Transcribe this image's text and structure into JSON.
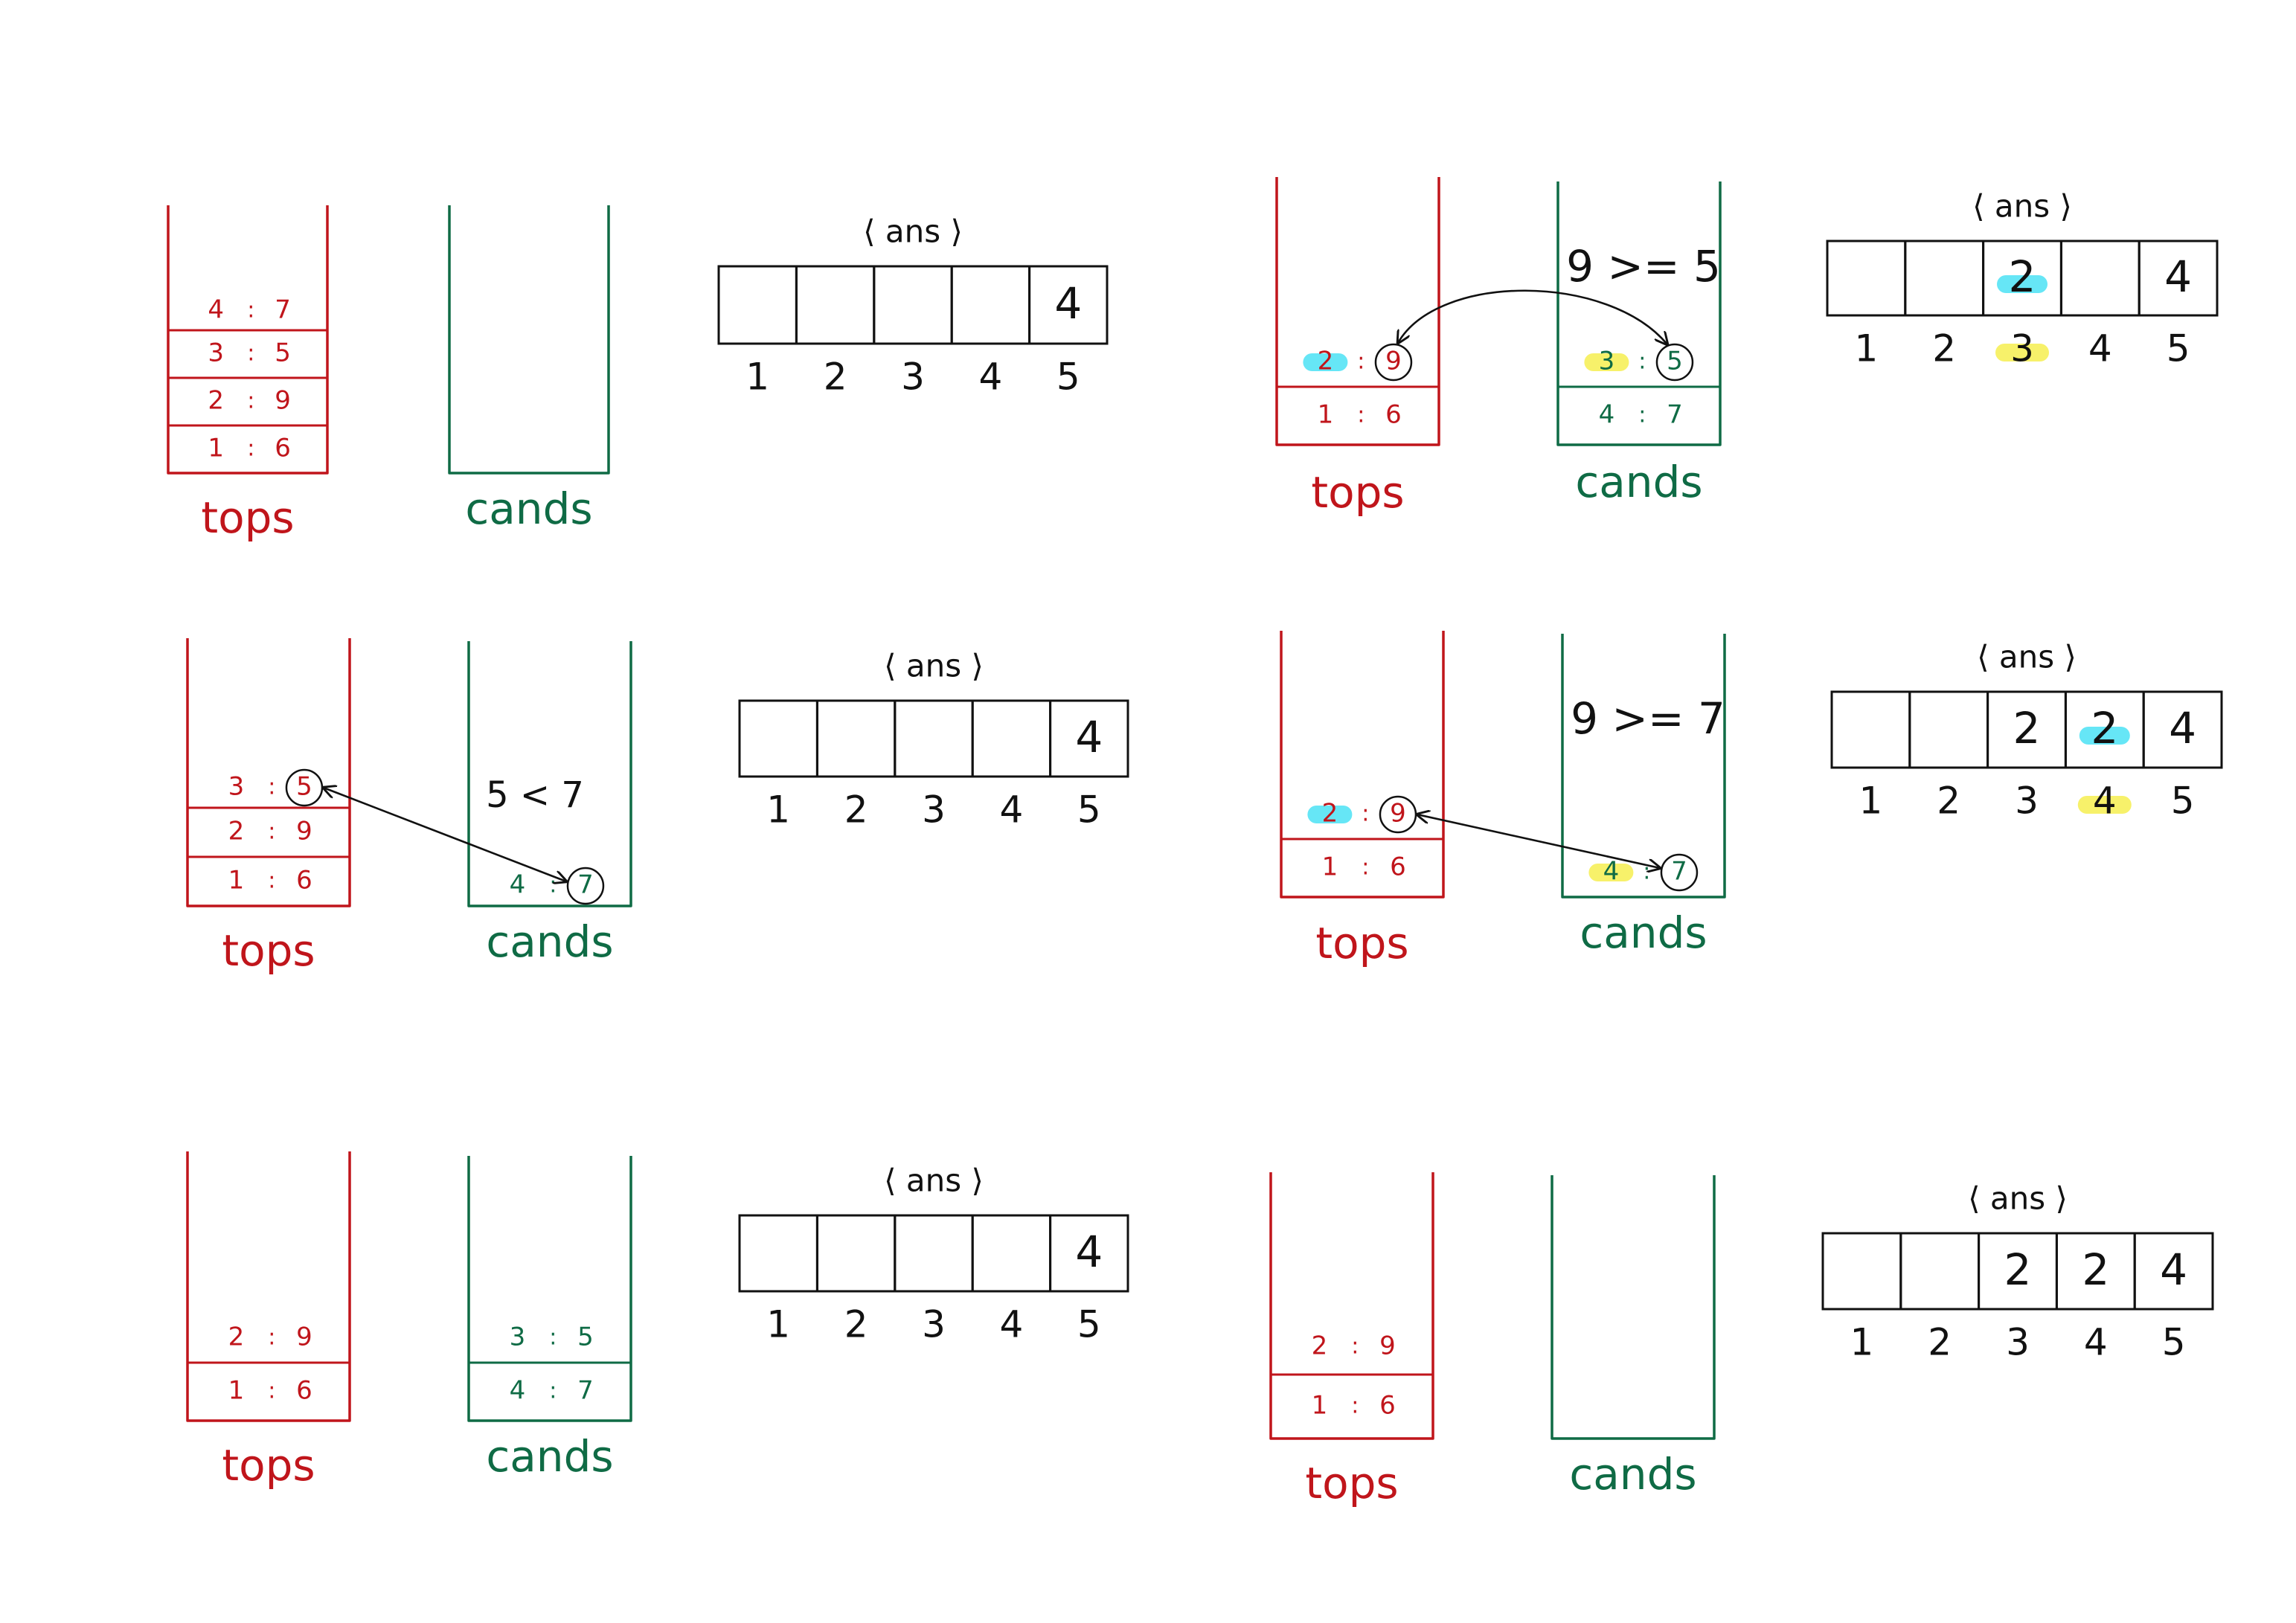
{
  "colors": {
    "tops": "#c0151b",
    "cands": "#0f6b45",
    "ink": "#111111",
    "highlight_cyan": "#55e3f5",
    "highlight_yellow": "#f6f05a"
  },
  "labels": {
    "tops": "tops",
    "cands": "cands",
    "ans": "⟨ ans ⟩",
    "separator": ":"
  },
  "panels": [
    {
      "id": "step-1",
      "tops": [
        {
          "k": "4",
          "v": "7"
        },
        {
          "k": "3",
          "v": "5"
        },
        {
          "k": "2",
          "v": "9"
        },
        {
          "k": "1",
          "v": "6"
        }
      ],
      "cands": [],
      "ans": {
        "cells": [
          "",
          "",
          "",
          "",
          "4"
        ],
        "indices": [
          "1",
          "2",
          "3",
          "4",
          "5"
        ]
      }
    },
    {
      "id": "step-2",
      "tops": [
        {
          "k": "2",
          "v": "9",
          "circle_v": true,
          "hl_k": "cyan"
        },
        {
          "k": "1",
          "v": "6"
        }
      ],
      "cands": [
        {
          "k": "3",
          "v": "5",
          "circle_v": true,
          "hl_k": "yellow"
        },
        {
          "k": "4",
          "v": "7"
        }
      ],
      "comparison": "9 >= 5",
      "ans": {
        "cells": [
          "",
          "",
          "2",
          "",
          "4"
        ],
        "indices": [
          "1",
          "2",
          "3",
          "4",
          "5"
        ],
        "hl_cell": 2,
        "hl_index": 2
      }
    },
    {
      "id": "step-3",
      "tops": [
        {
          "k": "3",
          "v": "5",
          "circle_v": true
        },
        {
          "k": "2",
          "v": "9"
        },
        {
          "k": "1",
          "v": "6"
        }
      ],
      "cands": [
        {
          "k": "4",
          "v": "7",
          "circle_v": true
        }
      ],
      "comparison": "5 < 7",
      "ans": {
        "cells": [
          "",
          "",
          "",
          "",
          "4"
        ],
        "indices": [
          "1",
          "2",
          "3",
          "4",
          "5"
        ]
      }
    },
    {
      "id": "step-4",
      "tops": [
        {
          "k": "2",
          "v": "9",
          "circle_v": true,
          "hl_k": "cyan"
        },
        {
          "k": "1",
          "v": "6"
        }
      ],
      "cands": [
        {
          "k": "4",
          "v": "7",
          "circle_v": true,
          "hl_k": "yellow"
        }
      ],
      "comparison": "9 >= 7",
      "ans": {
        "cells": [
          "",
          "",
          "2",
          "2",
          "4"
        ],
        "indices": [
          "1",
          "2",
          "3",
          "4",
          "5"
        ],
        "hl_cell": 3,
        "hl_index": 3
      }
    },
    {
      "id": "step-5",
      "tops": [
        {
          "k": "2",
          "v": "9"
        },
        {
          "k": "1",
          "v": "6"
        }
      ],
      "cands": [
        {
          "k": "3",
          "v": "5"
        },
        {
          "k": "4",
          "v": "7"
        }
      ],
      "ans": {
        "cells": [
          "",
          "",
          "",
          "",
          "4"
        ],
        "indices": [
          "1",
          "2",
          "3",
          "4",
          "5"
        ]
      }
    },
    {
      "id": "step-6",
      "tops": [
        {
          "k": "2",
          "v": "9"
        },
        {
          "k": "1",
          "v": "6"
        }
      ],
      "cands": [],
      "ans": {
        "cells": [
          "",
          "",
          "2",
          "2",
          "4"
        ],
        "indices": [
          "1",
          "2",
          "3",
          "4",
          "5"
        ]
      }
    }
  ]
}
